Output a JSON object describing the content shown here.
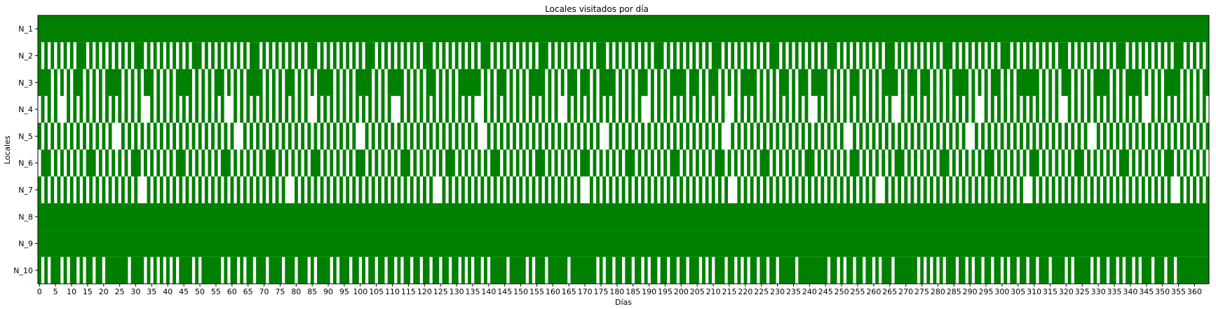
{
  "chart_data": {
    "type": "heatmap",
    "title": "Locales visitados por día",
    "xlabel": "Días",
    "ylabel": "Locales",
    "xlim": [
      0,
      365
    ],
    "x_ticks": [
      0,
      5,
      10,
      15,
      20,
      25,
      30,
      35,
      40,
      45,
      50,
      55,
      60,
      65,
      70,
      75,
      80,
      85,
      90,
      95,
      100,
      105,
      110,
      115,
      120,
      125,
      130,
      135,
      140,
      145,
      150,
      155,
      160,
      165,
      170,
      175,
      180,
      185,
      190,
      195,
      200,
      205,
      210,
      215,
      220,
      225,
      230,
      235,
      240,
      245,
      250,
      255,
      260,
      265,
      270,
      275,
      280,
      285,
      290,
      295,
      300,
      305,
      310,
      315,
      320,
      325,
      330,
      335,
      340,
      345,
      350,
      355,
      360
    ],
    "x_tick_labels": [
      "0",
      "5",
      "10",
      "15",
      "20",
      "25",
      "30",
      "35",
      "40",
      "45",
      "50",
      "55",
      "60",
      "65",
      "70",
      "75",
      "80",
      "85",
      "90",
      "95",
      "100",
      "105",
      "110",
      "115",
      "120",
      "125",
      "130",
      "135",
      "140",
      "145",
      "150",
      "155",
      "160",
      "165",
      "170",
      "175",
      "180",
      "185",
      "190",
      "195",
      "200",
      "205",
      "210",
      "215",
      "220",
      "225",
      "230",
      "235",
      "240",
      "245",
      "250",
      "255",
      "260",
      "265",
      "270",
      "275",
      "280",
      "285",
      "290",
      "295",
      "300",
      "305",
      "310",
      "315",
      "320",
      "325",
      "330",
      "335",
      "340",
      "345",
      "350",
      "355",
      "360"
    ],
    "rows": [
      "N_1",
      "N_2",
      "N_3",
      "N_4",
      "N_5",
      "N_6",
      "N_7",
      "N_8",
      "N_9",
      "N_10"
    ],
    "colors": {
      "visited": "#008000",
      "not_visited": "#ffffff"
    },
    "visits_summary": [
      {
        "row": "N_1",
        "pattern": "visited every day"
      },
      {
        "row": "N_2",
        "pattern": "alternating days, visited roughly every other day"
      },
      {
        "row": "N_3",
        "pattern": "irregular, mostly visited with occasional gaps"
      },
      {
        "row": "N_4",
        "pattern": "alternating days"
      },
      {
        "row": "N_5",
        "pattern": "alternating days"
      },
      {
        "row": "N_6",
        "pattern": "alternating days with occasional double visits"
      },
      {
        "row": "N_7",
        "pattern": "alternating days"
      },
      {
        "row": "N_8",
        "pattern": "visited every day"
      },
      {
        "row": "N_9",
        "pattern": "visited every day"
      },
      {
        "row": "N_10",
        "pattern": "mostly visited with occasional gap days"
      }
    ],
    "n10_not_visited_days": [
      1,
      3,
      7,
      9,
      12,
      14,
      17,
      20,
      28,
      33,
      35,
      37,
      39,
      41,
      43,
      48,
      50,
      57,
      59,
      62,
      64,
      67,
      71,
      76,
      80,
      84,
      86,
      91,
      93,
      97,
      100,
      102,
      105,
      108,
      111,
      113,
      116,
      119,
      122,
      125,
      128,
      131,
      133,
      135,
      138,
      140,
      146,
      152,
      154,
      158,
      165,
      174,
      176,
      179,
      182,
      185,
      188,
      190,
      193,
      196,
      199,
      202,
      206,
      208,
      210,
      214,
      217,
      219,
      221,
      224,
      227,
      230,
      236,
      246,
      249,
      251,
      254,
      257,
      260,
      262,
      266,
      274,
      276,
      278,
      280,
      282,
      286,
      289,
      291,
      294,
      297,
      300,
      302,
      305,
      308,
      311,
      315,
      320,
      322,
      328,
      330,
      333,
      336,
      338,
      341,
      343,
      347,
      351,
      354
    ]
  }
}
